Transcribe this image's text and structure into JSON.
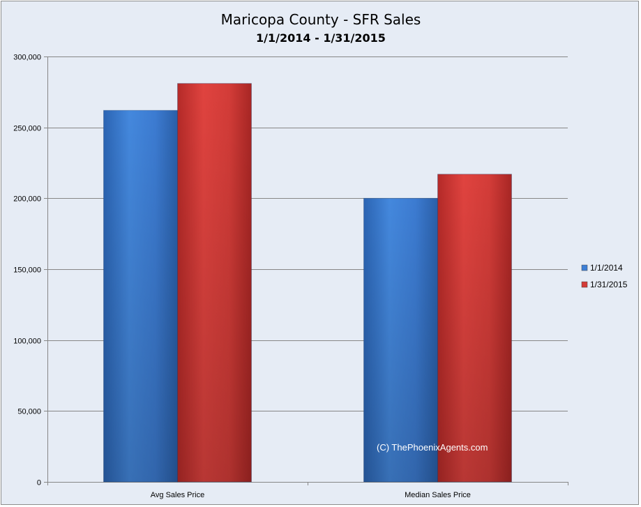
{
  "chart_data": {
    "type": "bar",
    "title": "Maricopa County - SFR Sales",
    "subtitle": "1/1/2014 - 1/31/2015",
    "categories": [
      "Avg Sales Price",
      "Median Sales Price"
    ],
    "series": [
      {
        "name": "1/1/2014",
        "values": [
          262000,
          200000
        ],
        "color": "#3d7fd6"
      },
      {
        "name": "1/31/2015",
        "values": [
          281000,
          217000
        ],
        "color": "#d43b37"
      }
    ],
    "ylim": [
      0,
      300000
    ],
    "yticks": [
      "0",
      "50,000",
      "100,000",
      "150,000",
      "200,000",
      "250,000",
      "300,000"
    ],
    "grid": true,
    "legend_position": "right",
    "watermark": "(C) ThePhoenixAgents.com"
  }
}
